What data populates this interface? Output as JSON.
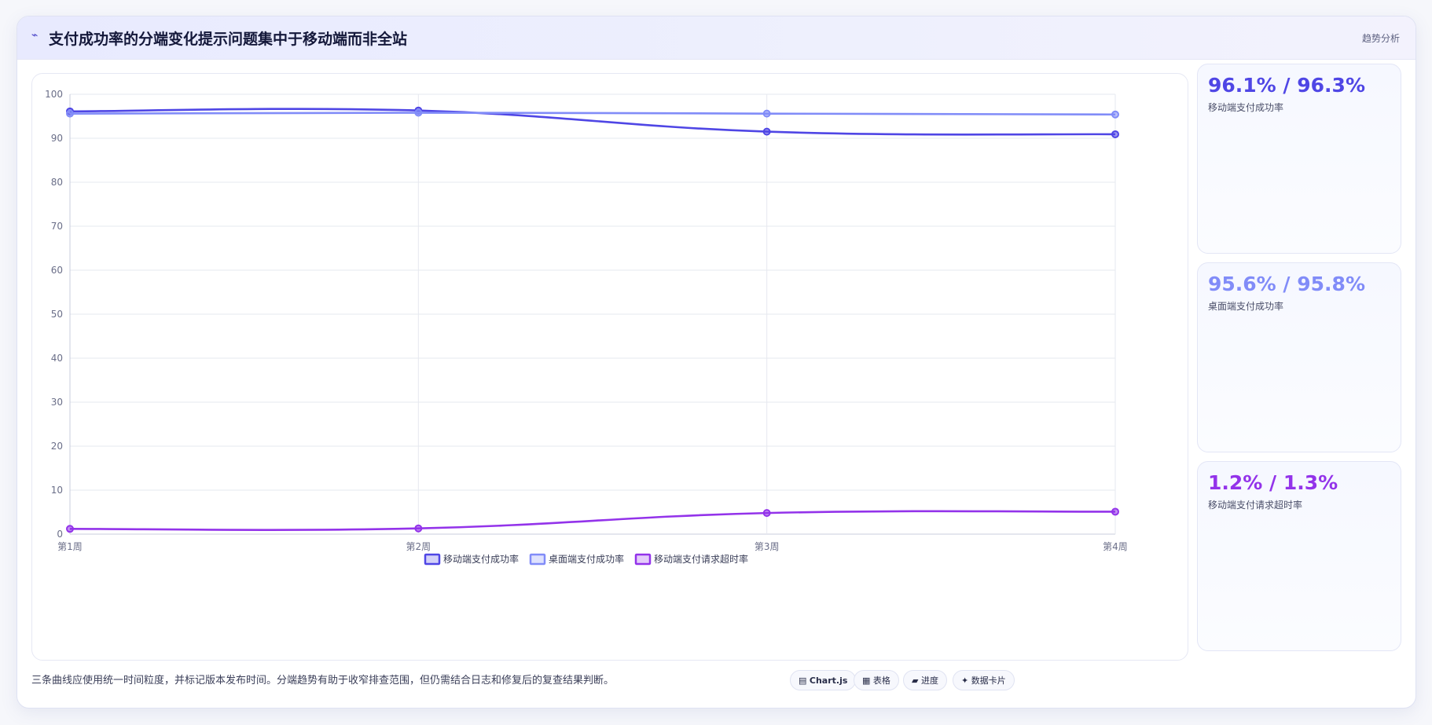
{
  "header": {
    "icon": "trend-line-icon",
    "icon_glyph": "⌁",
    "title": "支付成功率的分端变化提示问题集中于移动端而非全站",
    "tag": "趋势分析"
  },
  "chart_data": {
    "type": "line",
    "categories": [
      "第1周",
      "第2周",
      "第3周",
      "第4周"
    ],
    "ylim": [
      0,
      100
    ],
    "yticks": [
      0,
      10,
      20,
      30,
      40,
      50,
      60,
      70,
      80,
      90,
      100
    ],
    "grid": true,
    "legend_position": "bottom",
    "series": [
      {
        "name": "移动端支付成功率",
        "color": "#4f46e5",
        "values": [
          96.1,
          96.3,
          91.5,
          90.9
        ]
      },
      {
        "name": "桌面端支付成功率",
        "color": "#818cf8",
        "values": [
          95.6,
          95.8,
          95.6,
          95.4
        ]
      },
      {
        "name": "移动端支付请求超时率",
        "color": "#9333ea",
        "values": [
          1.2,
          1.3,
          4.8,
          5.1
        ]
      }
    ]
  },
  "stats": [
    {
      "value": "96.1% / 96.3%",
      "label": "移动端支付成功率",
      "color": "#4f46e5"
    },
    {
      "value": "95.6% / 95.8%",
      "label": "桌面端支付成功率",
      "color": "#818cf8"
    },
    {
      "value": "1.2% / 1.3%",
      "label": "移动端支付请求超时率",
      "color": "#9333ea"
    }
  ],
  "footnote": "三条曲线应使用统一时间粒度，并标记版本发布时间。分端趋势有助于收窄排查范围，但仍需结合日志和修复后的复查结果判断。",
  "badges": [
    {
      "icon": "chart-icon",
      "glyph": "▤",
      "label": "Chart.js",
      "bold": true
    },
    {
      "icon": "table-icon",
      "glyph": "▦",
      "label": "表格",
      "bold": false
    },
    {
      "icon": "progress-icon",
      "glyph": "▰",
      "label": "进度",
      "bold": false
    },
    {
      "icon": "data-card-icon",
      "glyph": "✦",
      "label": "数据卡片",
      "bold": false
    }
  ]
}
